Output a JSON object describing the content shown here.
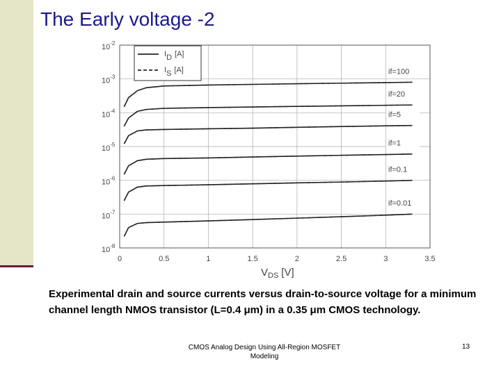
{
  "slide": {
    "title": "The Early voltage -2",
    "caption": "Experimental drain and source currents versus drain-to-source voltage for a minimum channel length NMOS transistor (L=0.4 μm) in a 0.35 μm CMOS technology.",
    "footer": [
      "CMOS Analog Design Using All-Region MOSFET",
      "Modeling"
    ],
    "page": "13"
  },
  "chart_data": {
    "type": "line",
    "log_y": true,
    "grid": true,
    "x": [
      0.05,
      0.1,
      0.2,
      0.3,
      0.5,
      1,
      1.5,
      2,
      2.5,
      3,
      3.3
    ],
    "xlim": [
      0,
      3.5
    ],
    "xticks": [
      0,
      0.5,
      1,
      1.5,
      2,
      2.5,
      3,
      3.5
    ],
    "ylim": [
      1e-08,
      0.01
    ],
    "yticks": [
      {
        "value": 1e-08,
        "label": "10",
        "exponent": "-8"
      },
      {
        "value": 1e-07,
        "label": "10",
        "exponent": "-7"
      },
      {
        "value": 1e-06,
        "label": "10",
        "exponent": "-6"
      },
      {
        "value": 1e-05,
        "label": "10",
        "exponent": "-5"
      },
      {
        "value": 0.0001,
        "label": "10",
        "exponent": "-4"
      },
      {
        "value": 0.001,
        "label": "10",
        "exponent": "-3"
      },
      {
        "value": 0.01,
        "label": "10",
        "exponent": "-2"
      }
    ],
    "x_label": {
      "symbol": "V",
      "subscript": "DS",
      "unit": "[V]"
    },
    "legend": [
      {
        "symbol": "I",
        "subscript": "D",
        "unit": "[A]",
        "dash": false
      },
      {
        "symbol": "I",
        "subscript": "S",
        "unit": "[A]",
        "dash": true
      }
    ],
    "color": "#222222",
    "series": [
      {
        "name": "if=100",
        "values": [
          0.00015,
          0.00028,
          0.00045,
          0.00055,
          0.00062,
          0.00066,
          0.00069,
          0.00072,
          0.00075,
          0.00078,
          0.0008
        ]
      },
      {
        "name": "if=20",
        "values": [
          4e-05,
          7e-05,
          0.00011,
          0.000125,
          0.000135,
          0.000142,
          0.000148,
          0.000154,
          0.00016,
          0.000166,
          0.00017
        ]
      },
      {
        "name": "if=5",
        "values": [
          1.2e-05,
          2.1e-05,
          2.9e-05,
          3.1e-05,
          3.2e-05,
          3.35e-05,
          3.5e-05,
          3.7e-05,
          3.9e-05,
          4.1e-05,
          4.2e-05
        ]
      },
      {
        "name": "if=1",
        "values": [
          1.5e-06,
          2.7e-06,
          3.8e-06,
          4.2e-06,
          4.4e-06,
          4.6e-06,
          4.9e-06,
          5.2e-06,
          5.5e-06,
          5.8e-06,
          6e-06
        ]
      },
      {
        "name": "if=0.1",
        "values": [
          2.5e-07,
          4.5e-07,
          6.3e-07,
          6.8e-07,
          7e-07,
          7.4e-07,
          7.9e-07,
          8.4e-07,
          8.9e-07,
          9.5e-07,
          1e-06
        ]
      },
      {
        "name": "if=0.01",
        "values": [
          2.2e-08,
          4e-08,
          5.3e-08,
          5.6e-08,
          5.8e-08,
          6.3e-08,
          6.9e-08,
          7.6e-08,
          8.4e-08,
          9.3e-08,
          1e-07
        ]
      }
    ]
  }
}
